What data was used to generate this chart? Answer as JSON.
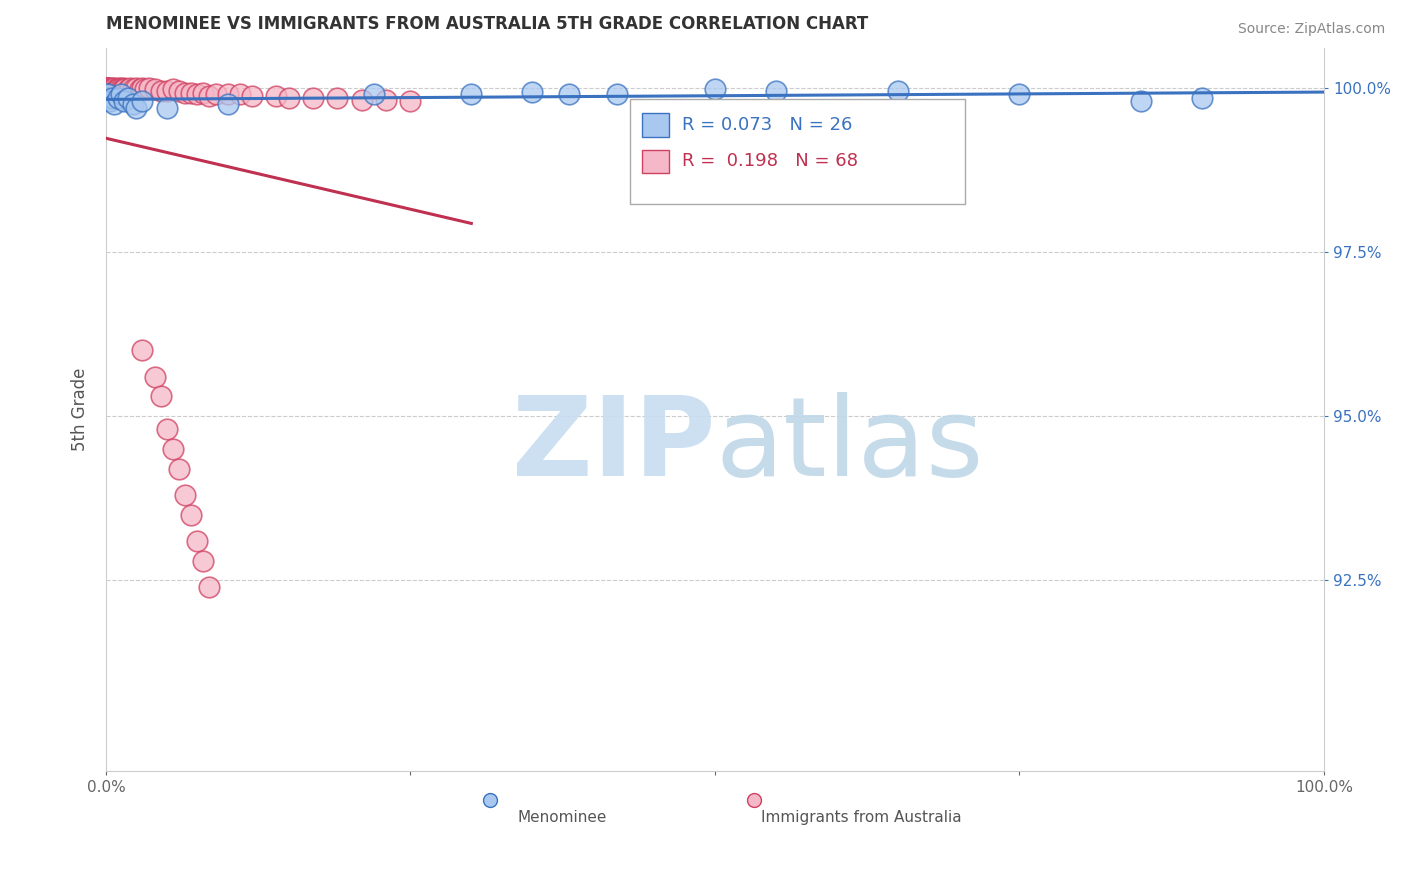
{
  "title": "MENOMINEE VS IMMIGRANTS FROM AUSTRALIA 5TH GRADE CORRELATION CHART",
  "source_text": "Source: ZipAtlas.com",
  "ylabel": "5th Grade",
  "xlim": [
    0.0,
    1.0
  ],
  "ylim": [
    0.896,
    1.006
  ],
  "xtick_positions": [
    0.0,
    0.25,
    0.5,
    0.75,
    1.0
  ],
  "xtick_labels": [
    "0.0%",
    "",
    "",
    "",
    "100.0%"
  ],
  "ytick_positions": [
    1.0,
    0.975,
    0.95,
    0.925
  ],
  "ytick_labels": [
    "100.0%",
    "97.5%",
    "95.0%",
    "92.5%"
  ],
  "blue_face_color": "#a8c8f0",
  "pink_face_color": "#f5b8c8",
  "blue_edge_color": "#3a72c0",
  "pink_edge_color": "#d04060",
  "blue_line_color": "#3a72c0",
  "pink_line_color": "#c03050",
  "axis_color": "#cccccc",
  "grid_color": "#cccccc",
  "label_color": "#3a72c0",
  "watermark_zip_color": "#c8ddf0",
  "watermark_atlas_color": "#c0d8e8",
  "blue_R": 0.073,
  "blue_N": 26,
  "pink_R": 0.198,
  "pink_N": 68,
  "blue_scatter_x": [
    0.0,
    0.001,
    0.002,
    0.003,
    0.005,
    0.007,
    0.01,
    0.012,
    0.015,
    0.018,
    0.022,
    0.025,
    0.03,
    0.05,
    0.1,
    0.22,
    0.3,
    0.35,
    0.38,
    0.42,
    0.5,
    0.55,
    0.65,
    0.75,
    0.85,
    0.9
  ],
  "blue_scatter_y": [
    0.999,
    0.9985,
    0.999,
    0.998,
    0.9985,
    0.9975,
    0.9985,
    0.999,
    0.998,
    0.9985,
    0.9975,
    0.997,
    0.998,
    0.997,
    0.9975,
    0.999,
    0.999,
    0.9993,
    0.999,
    0.999,
    0.9998,
    0.9995,
    0.9995,
    0.999,
    0.998,
    0.9985
  ],
  "pink_scatter_x": [
    0.0,
    0.0,
    0.0,
    0.0,
    0.0,
    0.0,
    0.0,
    0.0,
    0.0,
    0.001,
    0.001,
    0.002,
    0.002,
    0.003,
    0.003,
    0.004,
    0.005,
    0.005,
    0.006,
    0.007,
    0.008,
    0.009,
    0.01,
    0.01,
    0.012,
    0.013,
    0.015,
    0.015,
    0.018,
    0.02,
    0.022,
    0.025,
    0.028,
    0.03,
    0.032,
    0.035,
    0.04,
    0.045,
    0.05,
    0.055,
    0.06,
    0.065,
    0.07,
    0.075,
    0.08,
    0.085,
    0.09,
    0.1,
    0.11,
    0.12,
    0.14,
    0.15,
    0.17,
    0.19,
    0.21,
    0.23,
    0.25,
    0.03,
    0.04,
    0.045,
    0.05,
    0.055,
    0.06,
    0.065,
    0.07,
    0.075,
    0.08,
    0.085
  ],
  "pink_scatter_y": [
    1.0,
    1.0,
    1.0,
    1.0,
    0.9998,
    0.9998,
    0.9997,
    0.9995,
    0.9992,
    1.0,
    0.9998,
    1.0,
    0.9998,
    1.0,
    0.9995,
    0.9995,
    1.0,
    0.9998,
    0.9995,
    1.0,
    0.9998,
    0.9995,
    1.0,
    0.9998,
    1.0,
    0.9998,
    1.0,
    0.9998,
    0.9998,
    1.0,
    0.9998,
    1.0,
    0.9998,
    1.0,
    0.9998,
    1.0,
    0.9998,
    0.9995,
    0.9995,
    0.9998,
    0.9995,
    0.9992,
    0.9992,
    0.999,
    0.9992,
    0.9988,
    0.999,
    0.999,
    0.999,
    0.9988,
    0.9988,
    0.9985,
    0.9985,
    0.9985,
    0.9982,
    0.9982,
    0.998,
    0.96,
    0.956,
    0.953,
    0.948,
    0.945,
    0.942,
    0.938,
    0.935,
    0.931,
    0.928,
    0.924
  ]
}
